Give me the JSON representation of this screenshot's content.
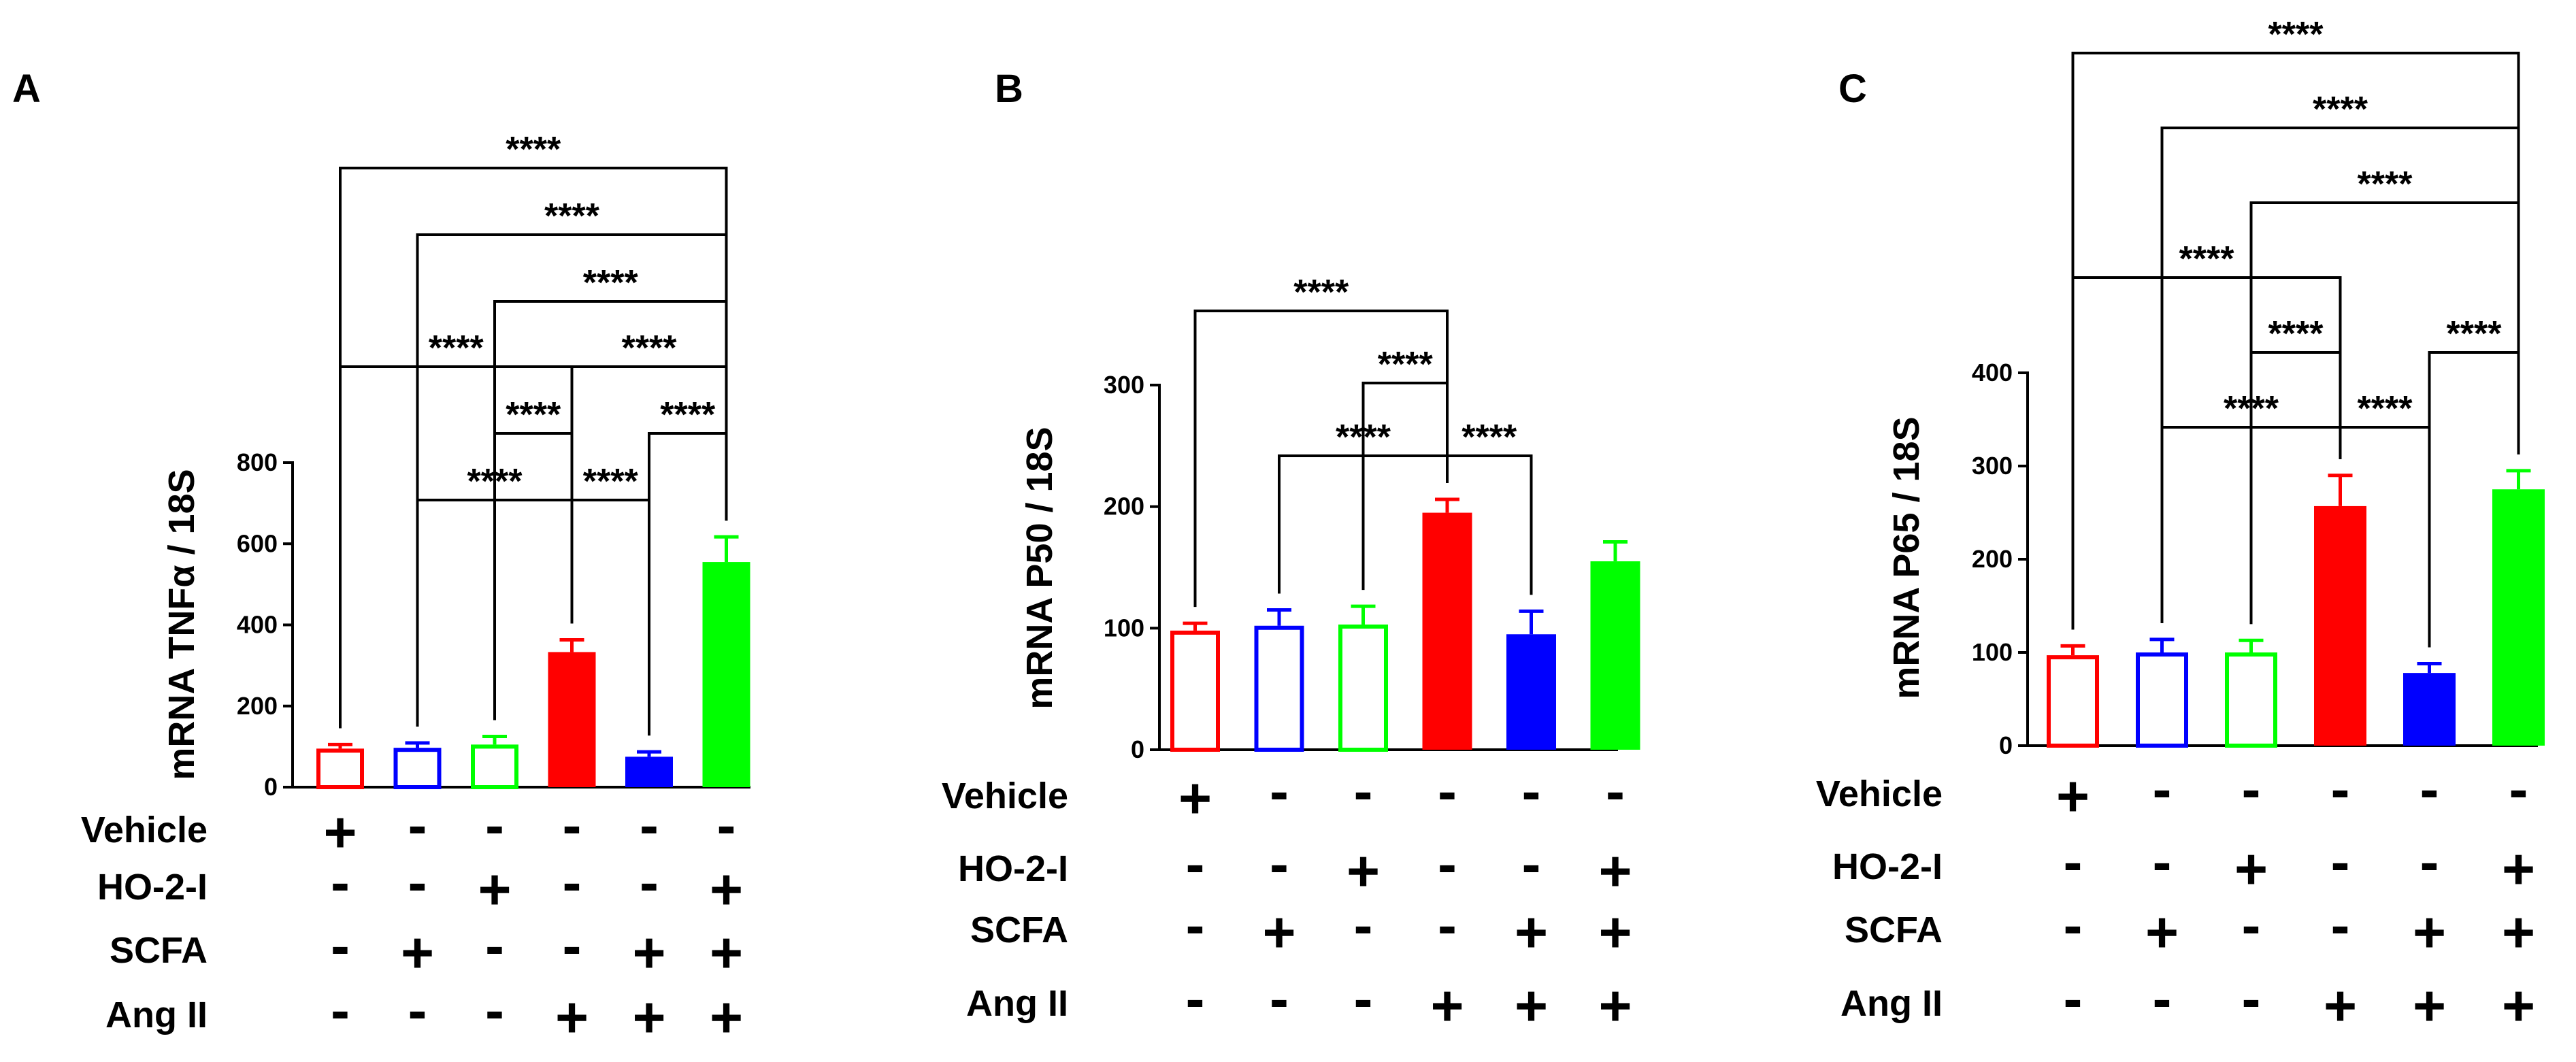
{
  "chart_data": [
    {
      "type": "bar",
      "panel_label": "A",
      "ylabel": "mRNA TNFα / 18S",
      "ylim": [
        0,
        800
      ],
      "yticks": [
        0,
        200,
        400,
        600,
        800
      ],
      "values": [
        95,
        97,
        105,
        333,
        75,
        555
      ],
      "errors": [
        10,
        12,
        20,
        30,
        12,
        62
      ],
      "colors": [
        "#ff0000",
        "#0000ff",
        "#00ff00",
        "#ff0000",
        "#0000ff",
        "#00ff00"
      ],
      "filled": [
        false,
        false,
        false,
        true,
        true,
        true
      ],
      "row_labels": [
        "Vehicle",
        "HO-2-I",
        "SCFA",
        "Ang II"
      ],
      "treatment_matrix": [
        [
          "+",
          "-",
          "-",
          "-",
          "-",
          "-"
        ],
        [
          "-",
          "-",
          "+",
          "-",
          "-",
          "+"
        ],
        [
          "-",
          "+",
          "-",
          "-",
          "+",
          "+"
        ],
        [
          "-",
          "-",
          "-",
          "+",
          "+",
          "+"
        ]
      ],
      "significance": [
        {
          "from": 0,
          "to": 5,
          "label": "****"
        },
        {
          "from": 1,
          "to": 5,
          "label": "****"
        },
        {
          "from": 2,
          "to": 5,
          "label": "****"
        },
        {
          "from": 0,
          "to": 3,
          "label": "****"
        },
        {
          "from": 3,
          "to": 5,
          "label": "****"
        },
        {
          "from": 2,
          "to": 3,
          "label": "****"
        },
        {
          "from": 4,
          "to": 5,
          "label": "****"
        },
        {
          "from": 1,
          "to": 3,
          "label": "****"
        },
        {
          "from": 3,
          "to": 4,
          "label": "****"
        }
      ]
    },
    {
      "type": "bar",
      "panel_label": "B",
      "ylabel": "mRNA P50 / 18S",
      "ylim": [
        0,
        300
      ],
      "yticks": [
        0,
        100,
        200,
        300
      ],
      "values": [
        98,
        102,
        103,
        195,
        95,
        155
      ],
      "errors": [
        6,
        13,
        15,
        11,
        19,
        16
      ],
      "colors": [
        "#ff0000",
        "#0000ff",
        "#00ff00",
        "#ff0000",
        "#0000ff",
        "#00ff00"
      ],
      "filled": [
        false,
        false,
        false,
        true,
        true,
        true
      ],
      "row_labels": [
        "Vehicle",
        "HO-2-I",
        "SCFA",
        "Ang II"
      ],
      "treatment_matrix": [
        [
          "+",
          "-",
          "-",
          "-",
          "-",
          "-"
        ],
        [
          "-",
          "-",
          "+",
          "-",
          "-",
          "+"
        ],
        [
          "-",
          "+",
          "-",
          "-",
          "+",
          "+"
        ],
        [
          "-",
          "-",
          "-",
          "+",
          "+",
          "+"
        ]
      ],
      "significance": [
        {
          "from": 0,
          "to": 3,
          "label": "****"
        },
        {
          "from": 2,
          "to": 3,
          "label": "****"
        },
        {
          "from": 1,
          "to": 3,
          "label": "****"
        },
        {
          "from": 3,
          "to": 4,
          "label": "****"
        }
      ]
    },
    {
      "type": "bar",
      "panel_label": "C",
      "ylabel": "mRNA P65 /  18S",
      "ylim": [
        0,
        400
      ],
      "yticks": [
        0,
        100,
        200,
        300,
        400
      ],
      "values": [
        97,
        100,
        100,
        257,
        78,
        275
      ],
      "errors": [
        10,
        14,
        13,
        33,
        10,
        20
      ],
      "colors": [
        "#ff0000",
        "#0000ff",
        "#00ff00",
        "#ff0000",
        "#0000ff",
        "#00ff00"
      ],
      "filled": [
        false,
        false,
        false,
        true,
        true,
        true
      ],
      "row_labels": [
        "Vehicle",
        "HO-2-I",
        "SCFA",
        "Ang II"
      ],
      "treatment_matrix": [
        [
          "+",
          "-",
          "-",
          "-",
          "-",
          "-"
        ],
        [
          "-",
          "-",
          "+",
          "-",
          "-",
          "+"
        ],
        [
          "-",
          "+",
          "-",
          "-",
          "+",
          "+"
        ],
        [
          "-",
          "-",
          "-",
          "+",
          "+",
          "+"
        ]
      ],
      "significance": [
        {
          "from": 0,
          "to": 5,
          "label": "****"
        },
        {
          "from": 1,
          "to": 5,
          "label": "****"
        },
        {
          "from": 2,
          "to": 5,
          "label": "****"
        },
        {
          "from": 0,
          "to": 3,
          "label": "****"
        },
        {
          "from": 2,
          "to": 3,
          "label": "****"
        },
        {
          "from": 4,
          "to": 5,
          "label": "****"
        },
        {
          "from": 1,
          "to": 3,
          "label": "****"
        },
        {
          "from": 3,
          "to": 4,
          "label": "****"
        }
      ]
    }
  ]
}
